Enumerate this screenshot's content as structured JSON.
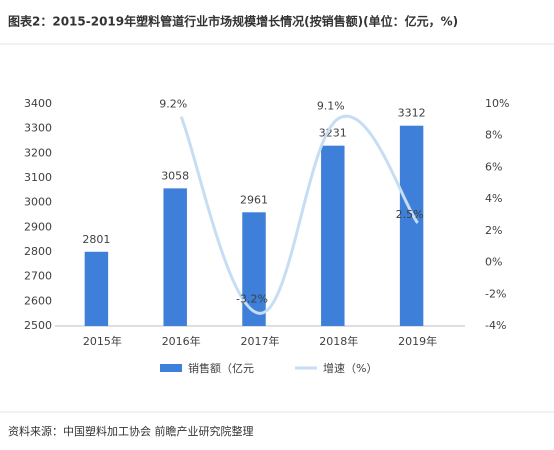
{
  "chart_data": {
    "type": "bar-line",
    "title": "图表2：2015-2019年塑料管道行业市场规模增长情况(按销售额)(单位：亿元，%)",
    "source": "资料来源：中国塑料加工协会 前瞻产业研究院整理",
    "categories": [
      "2015年",
      "2016年",
      "2017年",
      "2018年",
      "2019年"
    ],
    "series": [
      {
        "name": "销售额（亿元",
        "type": "bar",
        "color": "#3d7fd9",
        "values": [
          2801,
          3058,
          2961,
          3231,
          3312
        ]
      },
      {
        "name": "增速（%）",
        "type": "line",
        "axis": "y2",
        "color": "#c6ddf4",
        "values": [
          null,
          9.2,
          -3.2,
          9.1,
          2.5
        ],
        "value_labels": [
          null,
          "9.2%",
          "-3.2%",
          "9.1%",
          "2.5%"
        ]
      }
    ],
    "ylim": [
      2500,
      3400
    ],
    "yticks": [
      2500,
      2600,
      2700,
      2800,
      2900,
      3000,
      3100,
      3200,
      3300,
      3400
    ],
    "y2lim": [
      -4,
      10
    ],
    "y2ticks": [
      {
        "value": -4,
        "label": "-4%"
      },
      {
        "value": -2,
        "label": "-2%"
      },
      {
        "value": 0,
        "label": "0%"
      },
      {
        "value": 2,
        "label": "2%"
      },
      {
        "value": 4,
        "label": "4%"
      },
      {
        "value": 6,
        "label": "6%"
      },
      {
        "value": 8,
        "label": "8%"
      },
      {
        "value": 10,
        "label": "10%"
      }
    ],
    "grid": false,
    "legend": "bottom"
  }
}
